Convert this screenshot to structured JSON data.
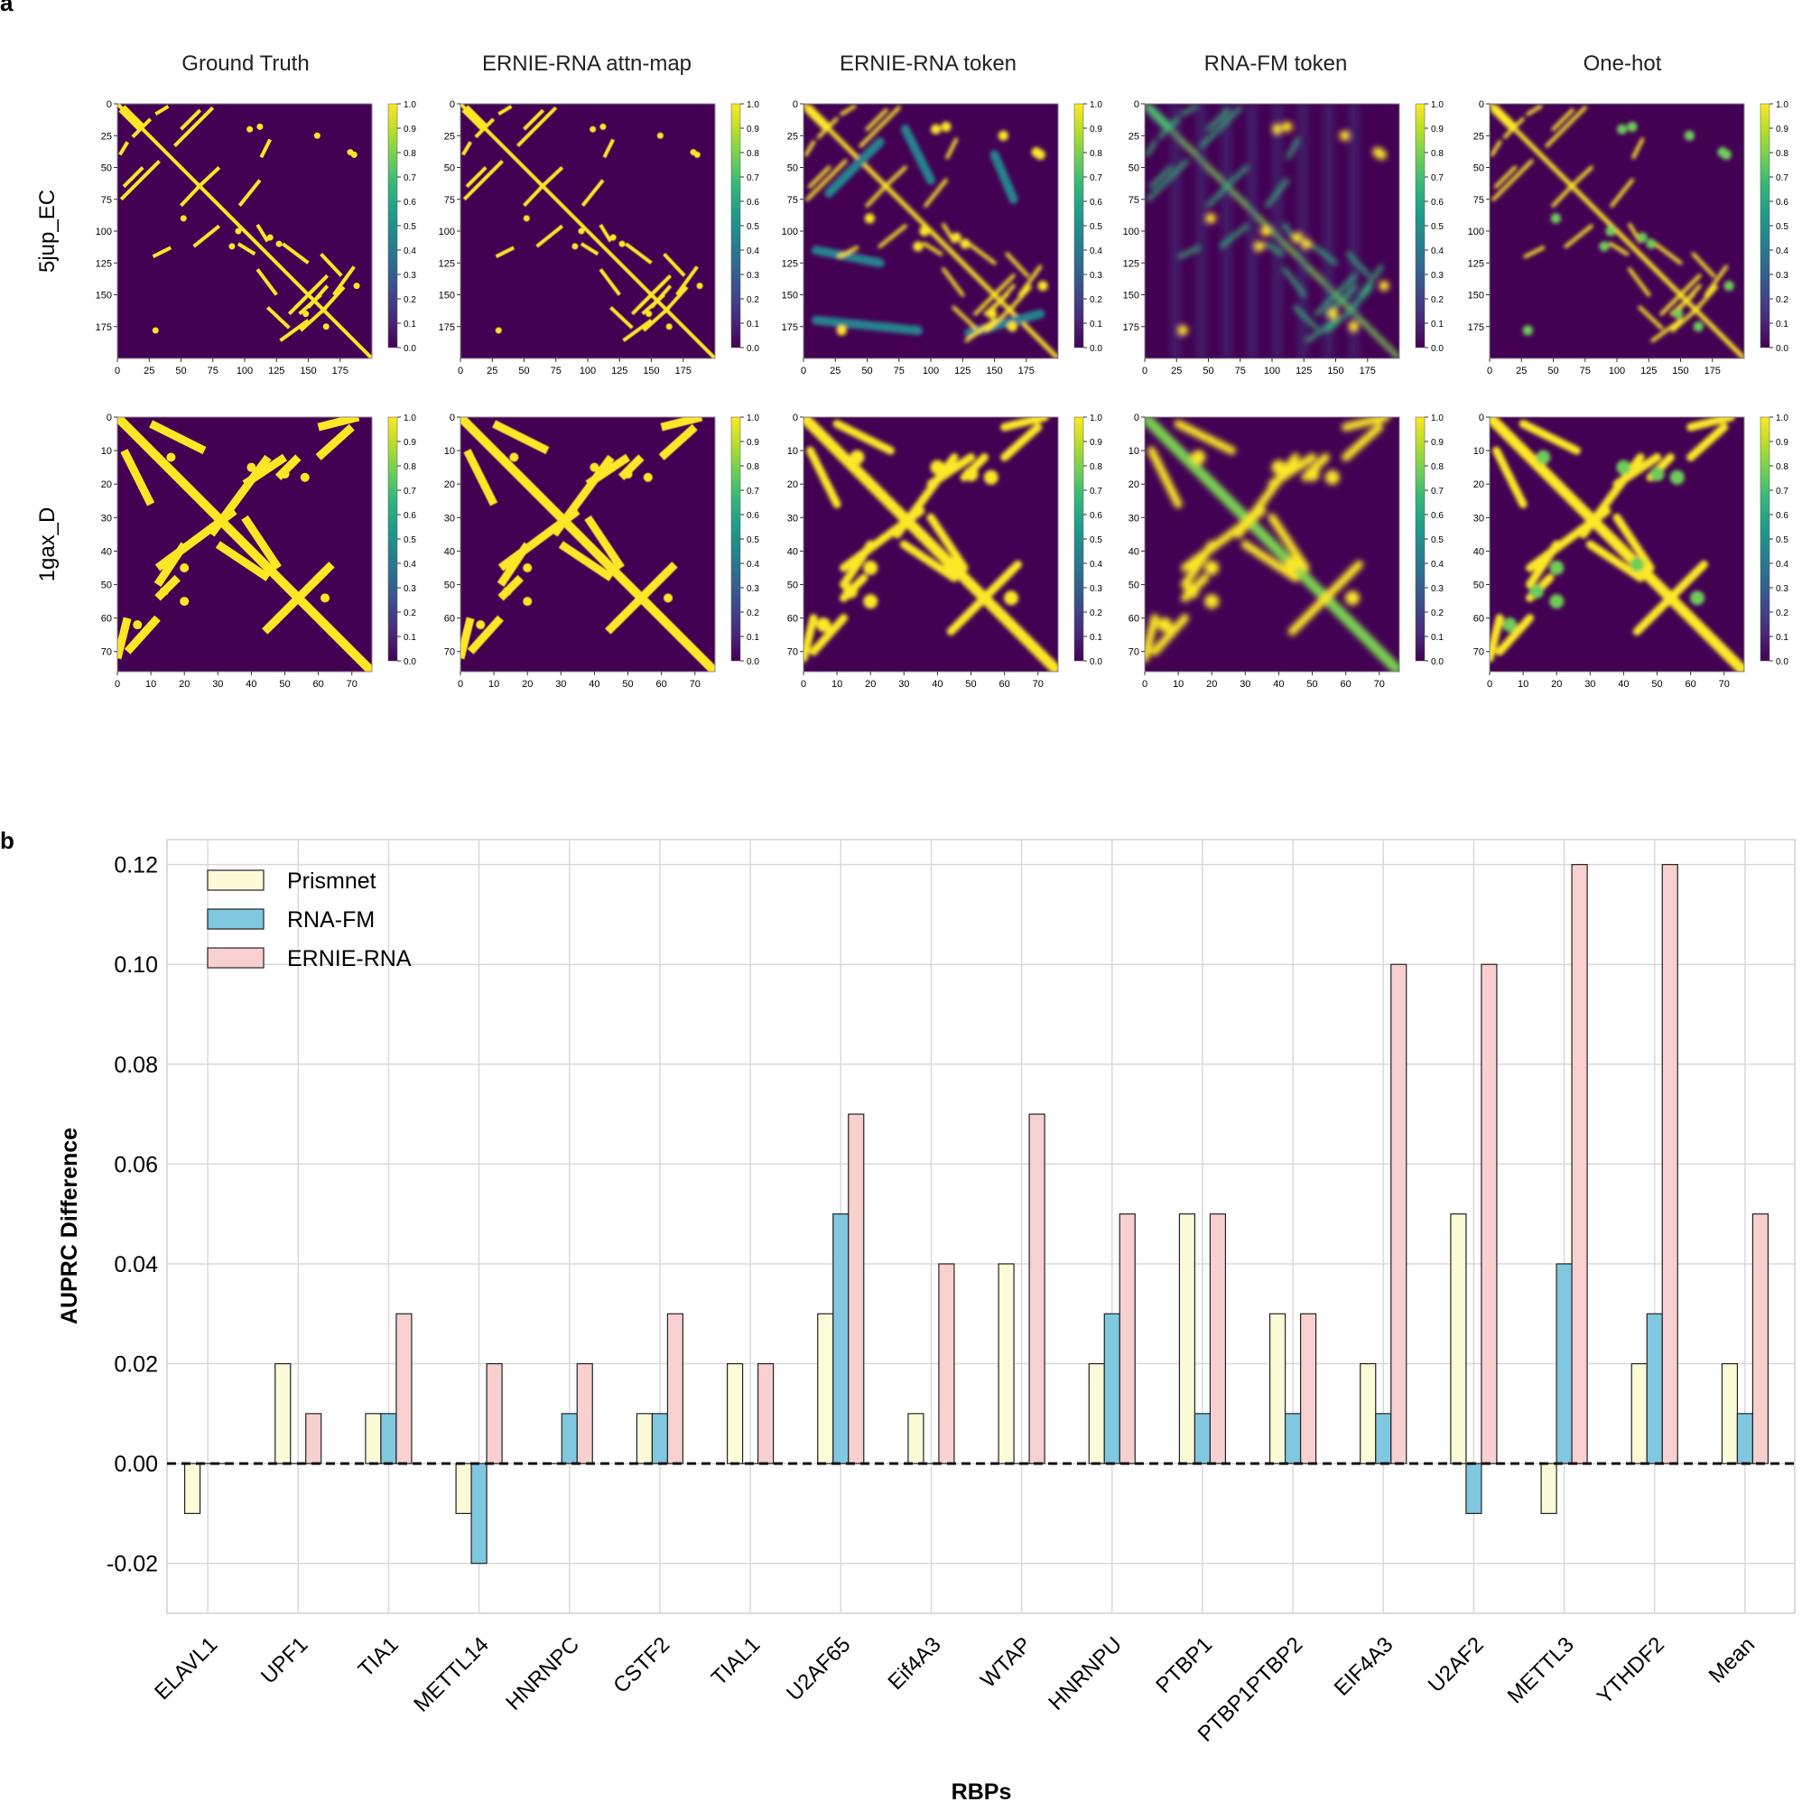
{
  "panel_a": {
    "label": "a",
    "columns": [
      "Ground Truth",
      "ERNIE-RNA attn-map",
      "ERNIE-RNA token",
      "RNA-FM token",
      "One-hot"
    ],
    "rows": [
      {
        "name": "5jup_EC",
        "ticks": [
          "0",
          "25",
          "50",
          "75",
          "100",
          "125",
          "150",
          "175"
        ],
        "max": 200
      },
      {
        "name": "1gax_D",
        "ticks": [
          "0",
          "10",
          "20",
          "30",
          "40",
          "50",
          "60",
          "70"
        ],
        "max": 76
      }
    ],
    "colorbar_ticks": [
      "1.0",
      "0.9",
      "0.8",
      "0.7",
      "0.6",
      "0.5",
      "0.4",
      "0.3",
      "0.2",
      "0.1",
      "0.0"
    ],
    "colormap": [
      "#440154",
      "#482878",
      "#3e4989",
      "#31688e",
      "#26828e",
      "#1f9e89",
      "#35b779",
      "#6ece58",
      "#b5de2b",
      "#fde725"
    ]
  },
  "panel_b": {
    "label": "b",
    "colors": {
      "Prismnet": "#fbfbd8",
      "RNA-FM": "#80c8e0",
      "ERNIE-RNA": "#f8d0d0"
    },
    "chart_data": {
      "type": "bar",
      "xlabel": "RBPs",
      "ylabel": "AUPRC Difference",
      "ylim": [
        -0.03,
        0.125
      ],
      "yticks": [
        "-0.02",
        "0.00",
        "0.02",
        "0.04",
        "0.06",
        "0.08",
        "0.10",
        "0.12"
      ],
      "ytick_values": [
        -0.02,
        0.0,
        0.02,
        0.04,
        0.06,
        0.08,
        0.1,
        0.12
      ],
      "grid": true,
      "legend_position": "top-left",
      "baseline": 0.0,
      "categories": [
        "ELAVL1",
        "UPF1",
        "TIA1",
        "METTL14",
        "HNRNPC",
        "CSTF2",
        "TIAL1",
        "U2AF65",
        "Eif4A3",
        "WTAP",
        "HNRNPU",
        "PTBP1",
        "PTBP1PTBP2",
        "EIF4A3",
        "U2AF2",
        "METTL3",
        "YTHDF2",
        "Mean"
      ],
      "series": [
        {
          "name": "Prismnet",
          "values": [
            -0.01,
            0.02,
            0.01,
            -0.01,
            0.0,
            0.01,
            0.02,
            0.03,
            0.01,
            0.04,
            0.02,
            0.05,
            0.03,
            0.02,
            0.05,
            -0.01,
            0.02,
            0.02
          ]
        },
        {
          "name": "RNA-FM",
          "values": [
            0.0,
            0.0,
            0.01,
            -0.02,
            0.01,
            0.01,
            0.0,
            0.05,
            0.0,
            0.0,
            0.03,
            0.01,
            0.01,
            0.01,
            -0.01,
            0.04,
            0.03,
            0.01
          ]
        },
        {
          "name": "ERNIE-RNA",
          "values": [
            0.0,
            0.01,
            0.03,
            0.02,
            0.02,
            0.03,
            0.02,
            0.07,
            0.04,
            0.07,
            0.05,
            0.05,
            0.03,
            0.1,
            0.1,
            0.12,
            0.12,
            0.05
          ]
        }
      ]
    }
  }
}
